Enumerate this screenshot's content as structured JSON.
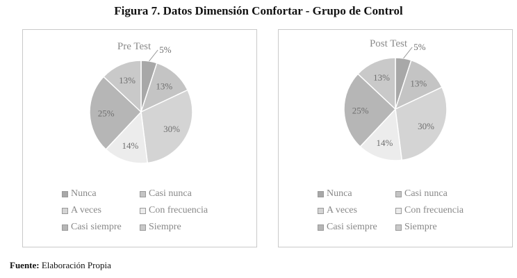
{
  "title": "Figura 7. Datos Dimensión Confortar - Grupo de Control",
  "source": {
    "label": "Fuente:",
    "text": "Elaboración Propia"
  },
  "categories": [
    "Nunca",
    "Casi nunca",
    "A veces",
    "Con frecuencia",
    "Casi siempre",
    "Siempre"
  ],
  "colors": [
    "#a8a8a8",
    "#c4c4c4",
    "#d4d4d4",
    "#ececec",
    "#b6b6b6",
    "#c9c9c9"
  ],
  "chart_data": [
    {
      "type": "pie",
      "title": "Pre Test",
      "categories": [
        "Nunca",
        "Casi nunca",
        "A veces",
        "Con frecuencia",
        "Casi siempre",
        "Siempre"
      ],
      "values": [
        5,
        13,
        30,
        14,
        25,
        13
      ],
      "labels": [
        "5%",
        "13%",
        "30%",
        "14%",
        "25%",
        "13%"
      ],
      "legend": "bottom"
    },
    {
      "type": "pie",
      "title": "Post Test",
      "categories": [
        "Nunca",
        "Casi nunca",
        "A veces",
        "Con frecuencia",
        "Casi siempre",
        "Siempre"
      ],
      "values": [
        5,
        13,
        30,
        14,
        25,
        13
      ],
      "labels": [
        "5%",
        "13%",
        "30%",
        "14%",
        "25%",
        "13%"
      ],
      "legend": "bottom"
    }
  ]
}
